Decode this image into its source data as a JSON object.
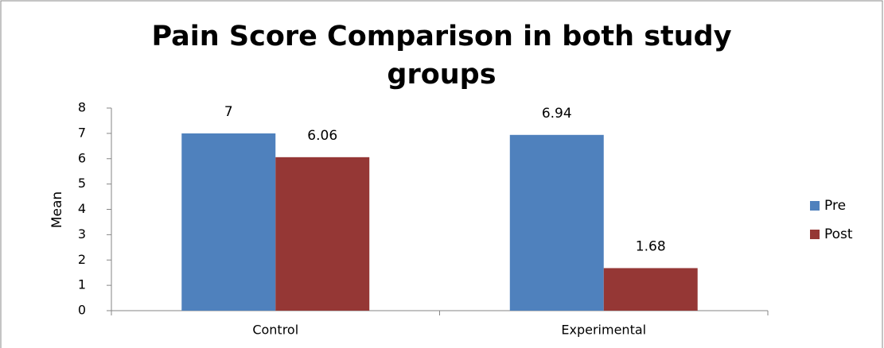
{
  "chart_data": {
    "type": "bar",
    "title": "Pain Score Comparison in both study groups",
    "y_label": "Mean",
    "categories": [
      "Control",
      "Experimental"
    ],
    "series": [
      {
        "name": "Pre",
        "color": "#4f81bd",
        "values": [
          7,
          6.94
        ]
      },
      {
        "name": "Post",
        "color": "#953735",
        "values": [
          6.06,
          1.68
        ]
      }
    ],
    "ylim": [
      0,
      8
    ],
    "yticks": [
      0,
      1,
      2,
      3,
      4,
      5,
      6,
      7,
      8
    ],
    "grid": false,
    "legend": "right",
    "data_labels": true
  }
}
